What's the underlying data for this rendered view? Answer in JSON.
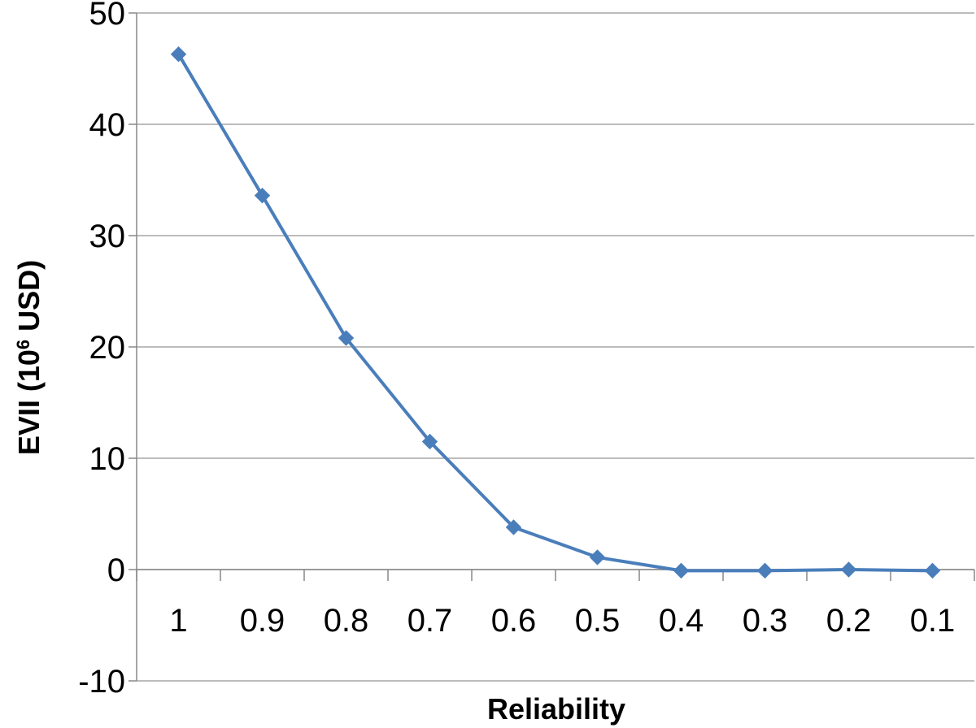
{
  "chart_data": {
    "type": "line",
    "title": "",
    "xlabel": "Reliability",
    "ylabel_main": "EVII (10",
    "ylabel_sup": "6",
    "ylabel_tail": " USD)",
    "categories": [
      "1",
      "0.9",
      "0.8",
      "0.7",
      "0.6",
      "0.5",
      "0.4",
      "0.3",
      "0.2",
      "0.1"
    ],
    "series": [
      {
        "values": [
          46.3,
          33.6,
          20.8,
          11.5,
          3.8,
          1.1,
          -0.1,
          -0.1,
          0.0,
          -0.1
        ]
      }
    ],
    "ylim": [
      -10,
      50
    ],
    "yticks": [
      -10,
      0,
      10,
      20,
      30,
      40,
      50
    ],
    "grid": true,
    "legend": "none",
    "marker": "diamond",
    "colors": {
      "line": "#4a7ebb",
      "marker": "#4a7ebb",
      "grid": "#a6a6a6",
      "axis": "#888888"
    }
  }
}
